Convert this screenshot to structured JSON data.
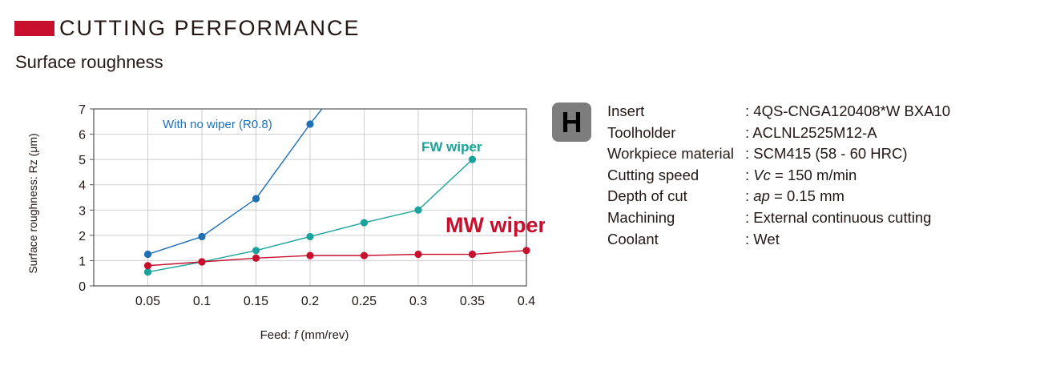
{
  "header": {
    "title": "CUTTING PERFORMANCE",
    "subtitle": "Surface roughness",
    "accent_color": "#c8102e"
  },
  "chart_data": {
    "type": "line",
    "xlabel_prefix": "Feed: ",
    "xlabel_symbol": "f",
    "xlabel_suffix": " (mm/rev)",
    "ylabel": "Surface roughness: Rz (μm)",
    "x_ticks": [
      "0.05",
      "0.1",
      "0.15",
      "0.2",
      "0.25",
      "0.3",
      "0.35",
      "0.4"
    ],
    "y_ticks": [
      "0",
      "1",
      "2",
      "3",
      "4",
      "5",
      "6",
      "7"
    ],
    "xlim": [
      0,
      0.4
    ],
    "ylim": [
      0,
      7
    ],
    "grid": true,
    "series": [
      {
        "name": "With no wiper (R0.8)",
        "color": "#1f6fb5",
        "x": [
          0.05,
          0.1,
          0.15,
          0.2
        ],
        "y": [
          1.25,
          1.95,
          3.45,
          6.4
        ],
        "extends_beyond": [
          0.211,
          7.0
        ]
      },
      {
        "name": "FW wiper",
        "color": "#1aa39a",
        "x": [
          0.05,
          0.1,
          0.15,
          0.2,
          0.25,
          0.3,
          0.35
        ],
        "y": [
          0.55,
          0.95,
          1.4,
          1.95,
          2.5,
          3.0,
          5.0
        ]
      },
      {
        "name": "MW wiper",
        "color": "#c8102e",
        "x": [
          0.05,
          0.1,
          0.15,
          0.2,
          0.25,
          0.3,
          0.35,
          0.4
        ],
        "y": [
          0.8,
          0.95,
          1.1,
          1.2,
          1.2,
          1.25,
          1.25,
          1.4
        ]
      }
    ]
  },
  "conditions": {
    "badge": "H",
    "rows": [
      {
        "label": "Insert",
        "value": ": 4QS-CNGA120408*W BXA10"
      },
      {
        "label": "Toolholder",
        "value": ": ACLNL2525M12-A"
      },
      {
        "label": "Workpiece material",
        "value": ": SCM415 (58 - 60 HRC)"
      },
      {
        "label": "Cutting speed",
        "value_prefix": ": ",
        "value_italic": "Vc",
        "value_suffix": " = 150 m/min"
      },
      {
        "label": "Depth of cut",
        "value_prefix": ": ",
        "value_italic": "ap",
        "value_suffix": " = 0.15 mm"
      },
      {
        "label": "Machining",
        "value": ": External continuous cutting"
      },
      {
        "label": "Coolant",
        "value": ": Wet"
      }
    ]
  }
}
